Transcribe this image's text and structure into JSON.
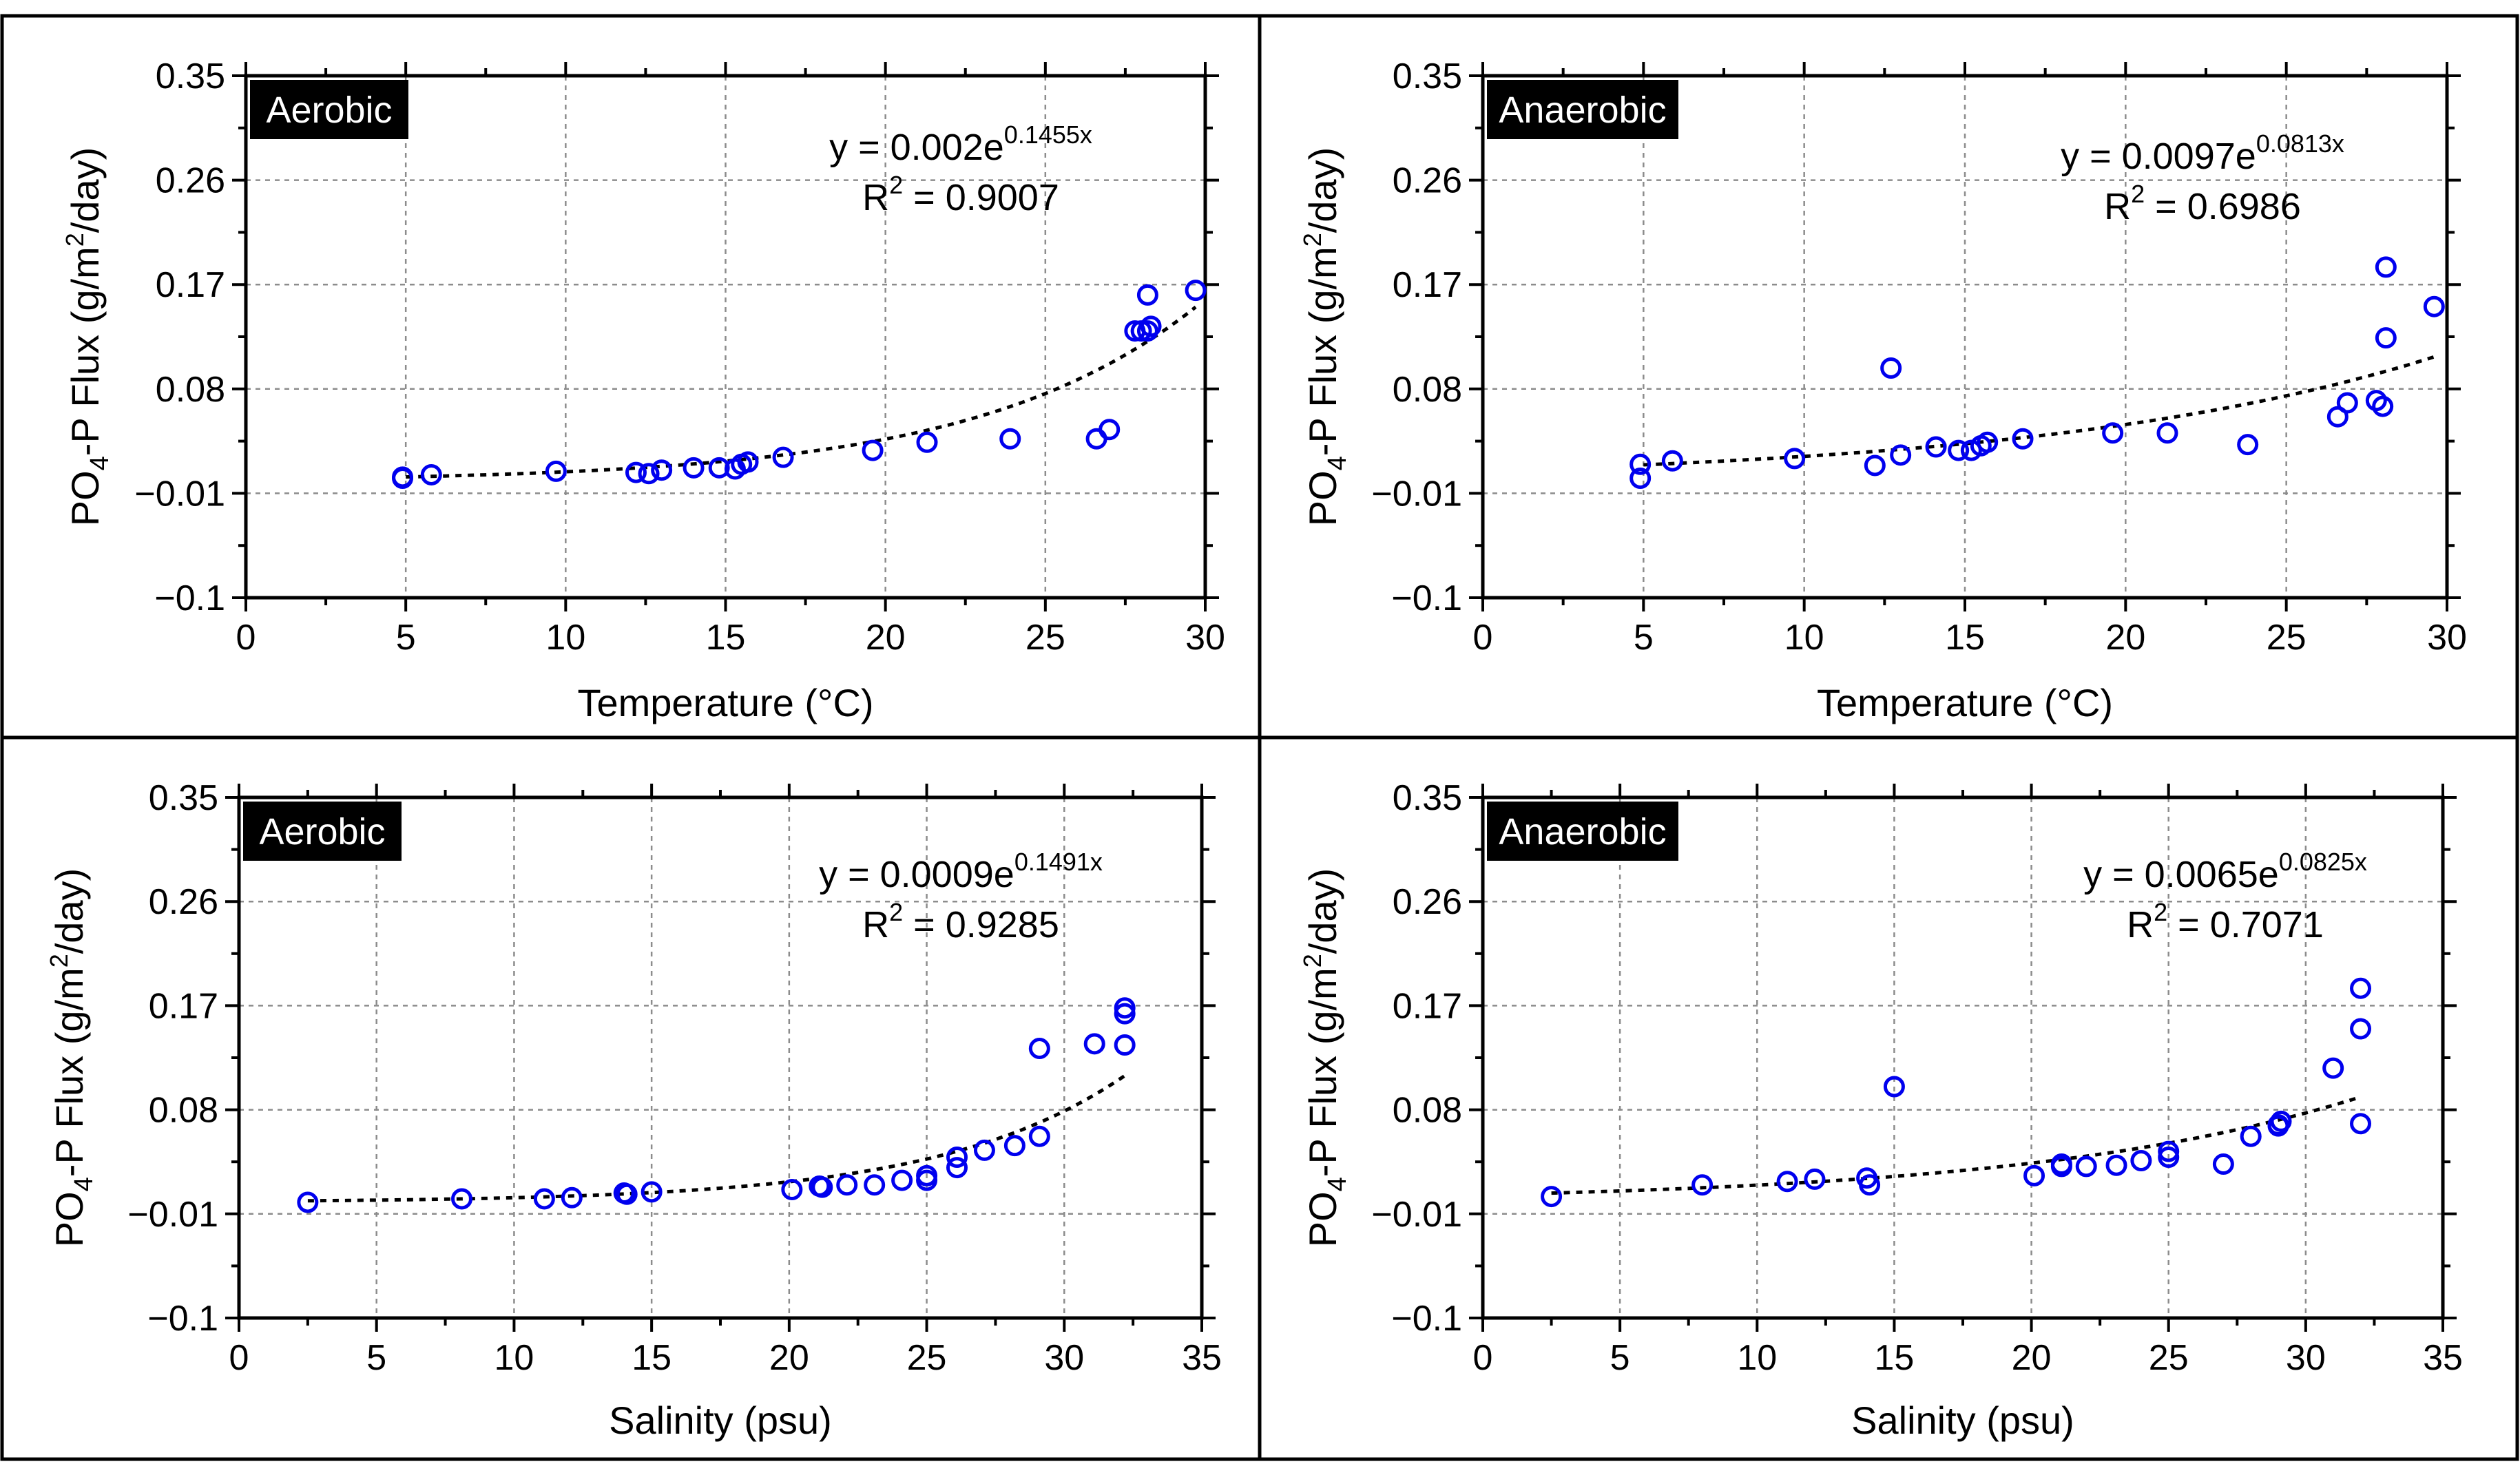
{
  "chart_data": [
    {
      "type": "scatter",
      "panel_label": "Aerobic",
      "xlabel": "Temperature (°C)",
      "ylabel_parts": [
        "PO",
        "4",
        "-P Flux (g/m",
        "2",
        "/day)"
      ],
      "xlim": [
        0,
        30
      ],
      "ylim": [
        -0.1,
        0.35
      ],
      "xticks": [
        0,
        5,
        10,
        15,
        20,
        25,
        30
      ],
      "xtick_labels": [
        "0",
        "5",
        "10",
        "15",
        "20",
        "25",
        "30"
      ],
      "yticks": [
        -0.1,
        -0.01,
        0.08,
        0.17,
        0.26,
        0.35
      ],
      "ytick_labels": [
        "−0.1",
        "−0.01",
        "0.08",
        "0.17",
        "0.26",
        "0.35"
      ],
      "grid": true,
      "equation_parts": [
        "y = 0.002e",
        "0.1455x"
      ],
      "r2_parts": [
        "R",
        "2",
        " = 0.9007"
      ],
      "marker_color": "#0000ee",
      "trendline_color": "#000000",
      "fit": {
        "a": 0.002,
        "b": 0.1455,
        "x_range": [
          5,
          29.7
        ]
      },
      "x": [
        4.9,
        4.9,
        5.8,
        9.7,
        12.2,
        12.6,
        13.0,
        14.0,
        14.8,
        15.3,
        15.5,
        15.7,
        16.8,
        19.6,
        21.3,
        23.9,
        26.6,
        27.0,
        27.8,
        28.0,
        28.2,
        28.3,
        28.2,
        29.7
      ],
      "y": [
        0.004,
        0.003,
        0.006,
        0.009,
        0.008,
        0.007,
        0.01,
        0.012,
        0.012,
        0.011,
        0.015,
        0.017,
        0.021,
        0.027,
        0.034,
        0.037,
        0.037,
        0.045,
        0.13,
        0.13,
        0.13,
        0.134,
        0.161,
        0.165
      ]
    },
    {
      "type": "scatter",
      "panel_label": "Anaerobic",
      "xlabel": "Temperature (°C)",
      "ylabel_parts": [
        "PO",
        "4",
        "-P Flux (g/m",
        "2",
        "/day)"
      ],
      "xlim": [
        0,
        30
      ],
      "ylim": [
        -0.1,
        0.35
      ],
      "xticks": [
        0,
        5,
        10,
        15,
        20,
        25,
        30
      ],
      "xtick_labels": [
        "0",
        "5",
        "10",
        "15",
        "20",
        "25",
        "30"
      ],
      "yticks": [
        -0.1,
        -0.01,
        0.08,
        0.17,
        0.26,
        0.35
      ],
      "ytick_labels": [
        "−0.1",
        "−0.01",
        "0.08",
        "0.17",
        "0.26",
        "0.35"
      ],
      "grid": true,
      "equation_parts": [
        "y = 0.0097e",
        "0.0813x"
      ],
      "r2_parts": [
        "R",
        "2",
        " = 0.6986"
      ],
      "marker_color": "#0000ee",
      "trendline_color": "#000000",
      "fit": {
        "a": 0.0097,
        "b": 0.0813,
        "x_range": [
          5,
          29.7
        ]
      },
      "x": [
        4.9,
        4.9,
        5.9,
        9.7,
        12.2,
        12.7,
        13.0,
        14.1,
        14.8,
        15.2,
        15.5,
        15.7,
        16.8,
        19.6,
        21.3,
        23.8,
        26.6,
        26.9,
        27.8,
        28.0,
        28.1,
        28.1,
        29.6
      ],
      "y": [
        0.015,
        0.003,
        0.018,
        0.02,
        0.014,
        0.098,
        0.023,
        0.03,
        0.027,
        0.027,
        0.031,
        0.034,
        0.037,
        0.042,
        0.042,
        0.032,
        0.056,
        0.068,
        0.07,
        0.065,
        0.124,
        0.185,
        0.151
      ]
    },
    {
      "type": "scatter",
      "panel_label": "Aerobic",
      "xlabel": "Salinity (psu)",
      "ylabel_parts": [
        "PO",
        "4",
        "-P Flux (g/m",
        "2",
        "/day)"
      ],
      "xlim": [
        0,
        35
      ],
      "ylim": [
        -0.1,
        0.35
      ],
      "xticks": [
        0,
        5,
        10,
        15,
        20,
        25,
        30,
        35
      ],
      "xtick_labels": [
        "0",
        "5",
        "10",
        "15",
        "20",
        "25",
        "30",
        "35"
      ],
      "yticks": [
        -0.1,
        -0.01,
        0.08,
        0.17,
        0.26,
        0.35
      ],
      "ytick_labels": [
        "−0.1",
        "−0.01",
        "0.08",
        "0.17",
        "0.26",
        "0.35"
      ],
      "grid": true,
      "equation_parts": [
        "y = 0.0009e",
        "0.1491x"
      ],
      "r2_parts": [
        "R",
        "2",
        " = 0.9285"
      ],
      "marker_color": "#0000ee",
      "trendline_color": "#000000",
      "fit": {
        "a": 0.0009,
        "b": 0.1491,
        "x_range": [
          2.5,
          32.2
        ]
      },
      "x": [
        2.5,
        8.1,
        11.1,
        12.1,
        14.0,
        14.1,
        15.0,
        20.1,
        21.1,
        21.2,
        22.1,
        23.1,
        24.1,
        25.0,
        25.0,
        26.1,
        26.1,
        27.1,
        28.2,
        29.1,
        29.1,
        31.1,
        32.2,
        32.2,
        32.2
      ],
      "y": [
        0.0,
        0.003,
        0.003,
        0.004,
        0.008,
        0.007,
        0.009,
        0.011,
        0.014,
        0.013,
        0.015,
        0.015,
        0.019,
        0.019,
        0.023,
        0.03,
        0.039,
        0.045,
        0.049,
        0.057,
        0.133,
        0.137,
        0.136,
        0.163,
        0.168
      ]
    },
    {
      "type": "scatter",
      "panel_label": "Anaerobic",
      "xlabel": "Salinity (psu)",
      "ylabel_parts": [
        "PO",
        "4",
        "-P Flux (g/m",
        "2",
        "/day)"
      ],
      "xlim": [
        0,
        35
      ],
      "ylim": [
        -0.1,
        0.35
      ],
      "xticks": [
        0,
        5,
        10,
        15,
        20,
        25,
        30,
        35
      ],
      "xtick_labels": [
        "0",
        "5",
        "10",
        "15",
        "20",
        "25",
        "30",
        "35"
      ],
      "yticks": [
        -0.1,
        -0.01,
        0.08,
        0.17,
        0.26,
        0.35
      ],
      "ytick_labels": [
        "−0.1",
        "−0.01",
        "0.08",
        "0.17",
        "0.26",
        "0.35"
      ],
      "grid": true,
      "equation_parts": [
        "y = 0.0065e",
        "0.0825x"
      ],
      "r2_parts": [
        "R",
        "2",
        " = 0.7071"
      ],
      "marker_color": "#0000ee",
      "trendline_color": "#000000",
      "fit": {
        "a": 0.0065,
        "b": 0.0825,
        "x_range": [
          2.5,
          32.0
        ]
      },
      "x": [
        2.5,
        8.0,
        11.1,
        12.1,
        14.0,
        14.1,
        15.0,
        20.1,
        21.1,
        21.1,
        22.0,
        23.1,
        24.0,
        25.0,
        25.0,
        27.0,
        28.0,
        29.0,
        29.1,
        29.0,
        31.0,
        32.0,
        32.0,
        32.0
      ],
      "y": [
        0.005,
        0.015,
        0.018,
        0.02,
        0.021,
        0.015,
        0.1,
        0.023,
        0.031,
        0.033,
        0.031,
        0.032,
        0.036,
        0.039,
        0.044,
        0.033,
        0.057,
        0.066,
        0.07,
        0.067,
        0.116,
        0.068,
        0.15,
        0.185
      ]
    }
  ]
}
